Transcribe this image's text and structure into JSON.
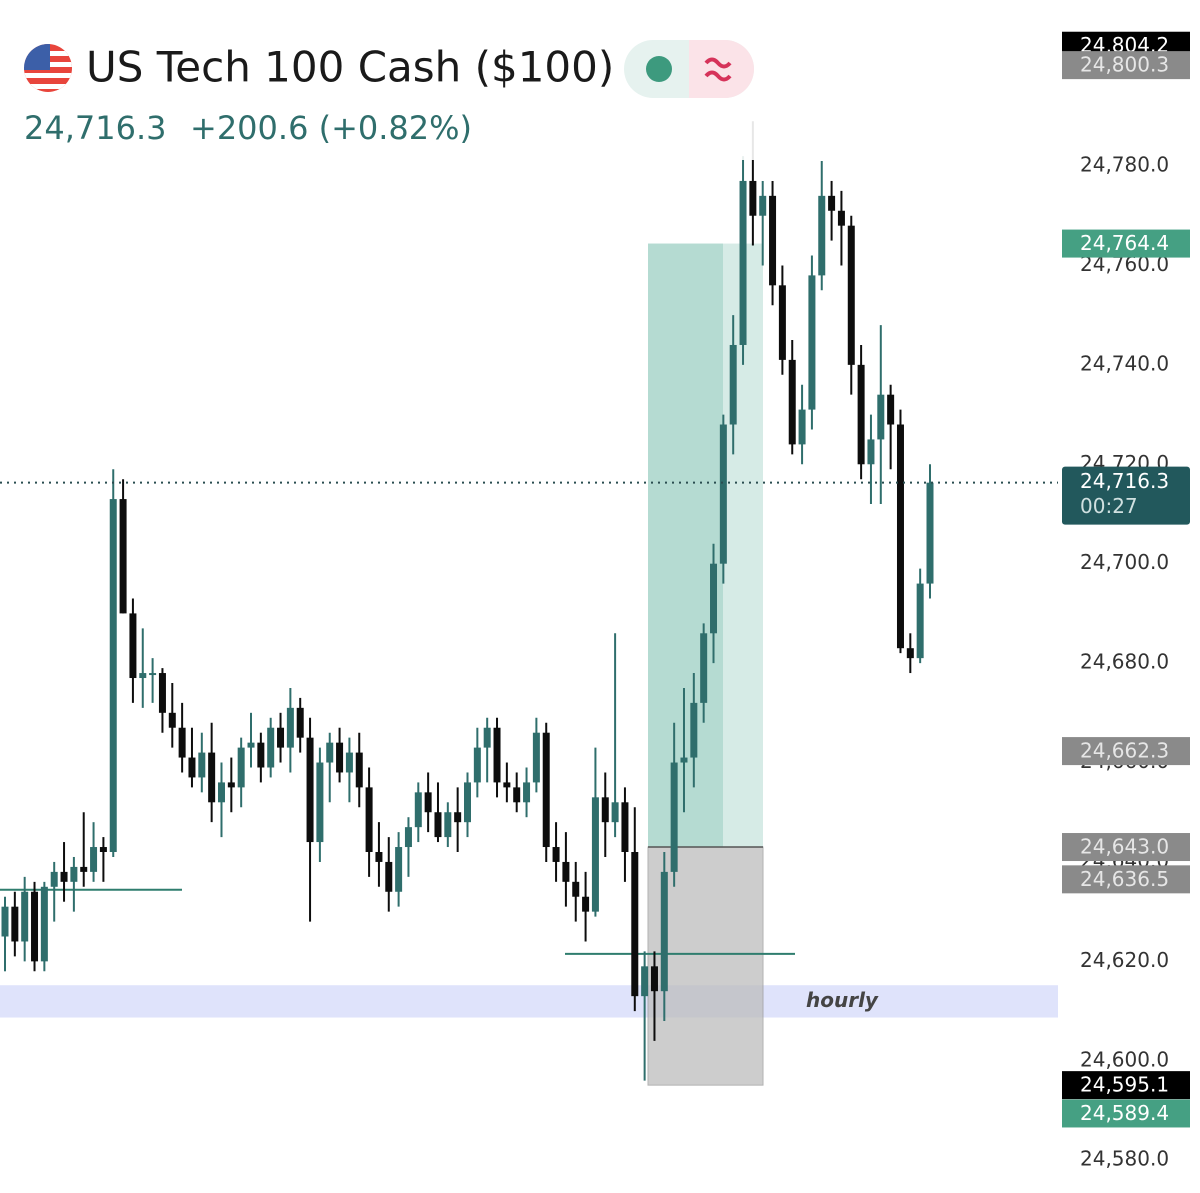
{
  "chart_data": {
    "type": "candlestick",
    "title": "US Tech 100 Cash ($100)",
    "price": {
      "value": 24716.3,
      "label": "24,716.3"
    },
    "change": "+200.6 (+0.82%)",
    "ylim": [
      24573.4,
      24813.4
    ],
    "yticks": [
      {
        "value": 24580,
        "label": "24,580.0"
      },
      {
        "value": 24600,
        "label": "24,600.0"
      },
      {
        "value": 24620,
        "label": "24,620.0"
      },
      {
        "value": 24640,
        "label": "24,640.0"
      },
      {
        "value": 24660,
        "label": "24,660.0"
      },
      {
        "value": 24680,
        "label": "24,680.0"
      },
      {
        "value": 24700,
        "label": "24,700.0"
      },
      {
        "value": 24720,
        "label": "24,720.0"
      },
      {
        "value": 24740,
        "label": "24,740.0"
      },
      {
        "value": 24760,
        "label": "24,760.0"
      },
      {
        "value": 24780,
        "label": "24,780.0"
      }
    ],
    "up_color": "#2f6e6c",
    "down_color": "#0d0d0d",
    "open": [
      24625,
      24631,
      24624,
      24634,
      24620,
      24635,
      24638,
      24636,
      24639,
      24638,
      24643,
      24642,
      24713,
      24690,
      24677,
      24678,
      24678,
      24670,
      24667,
      24661,
      24657,
      24662,
      24652,
      24656,
      24655,
      24663,
      24664,
      24659,
      24667,
      24663,
      24671,
      24665,
      24644,
      24660,
      24664,
      24658,
      24662,
      24655,
      24642,
      24640,
      24634,
      24643,
      24647,
      24654,
      24650,
      24645,
      24650,
      24648,
      24656,
      24663,
      24667,
      24656,
      24655,
      24652,
      24656,
      24666,
      24643,
      24640,
      24636,
      24633,
      24630,
      24653,
      24648,
      24652,
      24642,
      24613,
      24619,
      24614,
      24638,
      24660,
      24661,
      24672,
      24686,
      24700,
      24728,
      24744,
      24777,
      24770,
      24774,
      24756,
      24741,
      24724,
      24731,
      24758,
      24774,
      24771,
      24768,
      24740,
      24720,
      24725,
      24734,
      24728,
      24683,
      24681,
      24696
    ],
    "high": [
      24633,
      24634,
      24637,
      24636,
      24636,
      24640,
      24644,
      24641,
      24650,
      24648,
      24645,
      24719,
      24717,
      24693,
      24687,
      24681,
      24679,
      24676,
      24672,
      24667,
      24666,
      24668,
      24660,
      24661,
      24665,
      24670,
      24666,
      24669,
      24670,
      24675,
      24673,
      24669,
      24663,
      24666,
      24667,
      24665,
      24666,
      24659,
      24648,
      24645,
      24646,
      24649,
      24656,
      24658,
      24656,
      24652,
      24655,
      24658,
      24667,
      24669,
      24669,
      24660,
      24658,
      24659,
      24669,
      24668,
      24648,
      24646,
      24640,
      24638,
      24663,
      24658,
      24686,
      24655,
      24651,
      24622,
      24622,
      24642,
      24668,
      24675,
      24678,
      24688,
      24704,
      24730,
      24750,
      24782,
      24789,
      24777,
      24777,
      24760,
      24745,
      24736,
      24762,
      24781,
      24777,
      24775,
      24770,
      24744,
      24730,
      24748,
      24736,
      24731,
      24686,
      24699,
      24720
    ],
    "low": [
      24618,
      24621,
      24620,
      24618,
      24618,
      24628,
      24632,
      24630,
      24635,
      24636,
      24636,
      24641,
      24690,
      24672,
      24671,
      24672,
      24666,
      24663,
      24658,
      24655,
      24654,
      24648,
      24645,
      24650,
      24651,
      24659,
      24656,
      24657,
      24660,
      24658,
      24662,
      24628,
      24640,
      24652,
      24656,
      24652,
      24651,
      24637,
      24635,
      24630,
      24631,
      24637,
      24644,
      24646,
      24644,
      24643,
      24642,
      24645,
      24653,
      24656,
      24653,
      24652,
      24650,
      24649,
      24654,
      24640,
      24636,
      24631,
      24628,
      24624,
      24629,
      24641,
      24645,
      24636,
      24610,
      24596,
      24604,
      24608,
      24635,
      24650,
      24655,
      24668,
      24680,
      24696,
      24722,
      24740,
      24764,
      24760,
      24752,
      24738,
      24722,
      24720,
      24727,
      24755,
      24765,
      24760,
      24734,
      24717,
      24712,
      24712,
      24719,
      24682,
      24678,
      24680,
      24693
    ],
    "close": [
      24631,
      24624,
      24634,
      24620,
      24635,
      24638,
      24636,
      24639,
      24638,
      24643,
      24642,
      24713,
      24690,
      24677,
      24678,
      24678,
      24670,
      24667,
      24661,
      24657,
      24662,
      24652,
      24656,
      24655,
      24663,
      24664,
      24659,
      24667,
      24663,
      24671,
      24665,
      24644,
      24660,
      24664,
      24658,
      24662,
      24655,
      24642,
      24640,
      24634,
      24643,
      24647,
      24654,
      24650,
      24645,
      24650,
      24648,
      24656,
      24663,
      24667,
      24656,
      24655,
      24652,
      24656,
      24666,
      24643,
      24640,
      24636,
      24633,
      24630,
      24653,
      24648,
      24652,
      24642,
      24613,
      24619,
      24614,
      24638,
      24660,
      24661,
      24672,
      24686,
      24700,
      24728,
      24744,
      24777,
      24770,
      24774,
      24756,
      24741,
      24724,
      24731,
      24758,
      24774,
      24771,
      24768,
      24740,
      24720,
      24725,
      24734,
      24728,
      24683,
      24681,
      24696,
      24716.3
    ],
    "position": {
      "entry": 24643.0,
      "target": 24764.4,
      "stop": 24595.1
    },
    "levels": [
      24634.4,
      24621.5
    ],
    "zone": {
      "label": "hourly",
      "from": 24608.7,
      "to": 24615.2
    },
    "countdown": "00:27",
    "price_tags": [
      {
        "value": 24804.2,
        "label": "24,804.2",
        "color": "#000000"
      },
      {
        "value": 24800.3,
        "label": "24,800.3",
        "color": "#8a8a8a"
      },
      {
        "value": 24764.4,
        "label": "24,764.4",
        "color": "#45a083"
      },
      {
        "value": 24662.3,
        "label": "24,662.3",
        "color": "#8a8a8a"
      },
      {
        "value": 24643.0,
        "label": "24,643.0",
        "color": "#8a8a8a"
      },
      {
        "value": 24636.5,
        "label": "24,636.5",
        "color": "#8a8a8a"
      },
      {
        "value": 24595.1,
        "label": "24,595.1",
        "color": "#000000"
      },
      {
        "value": 24589.4,
        "label": "24,589.4",
        "color": "#45a083"
      }
    ]
  }
}
